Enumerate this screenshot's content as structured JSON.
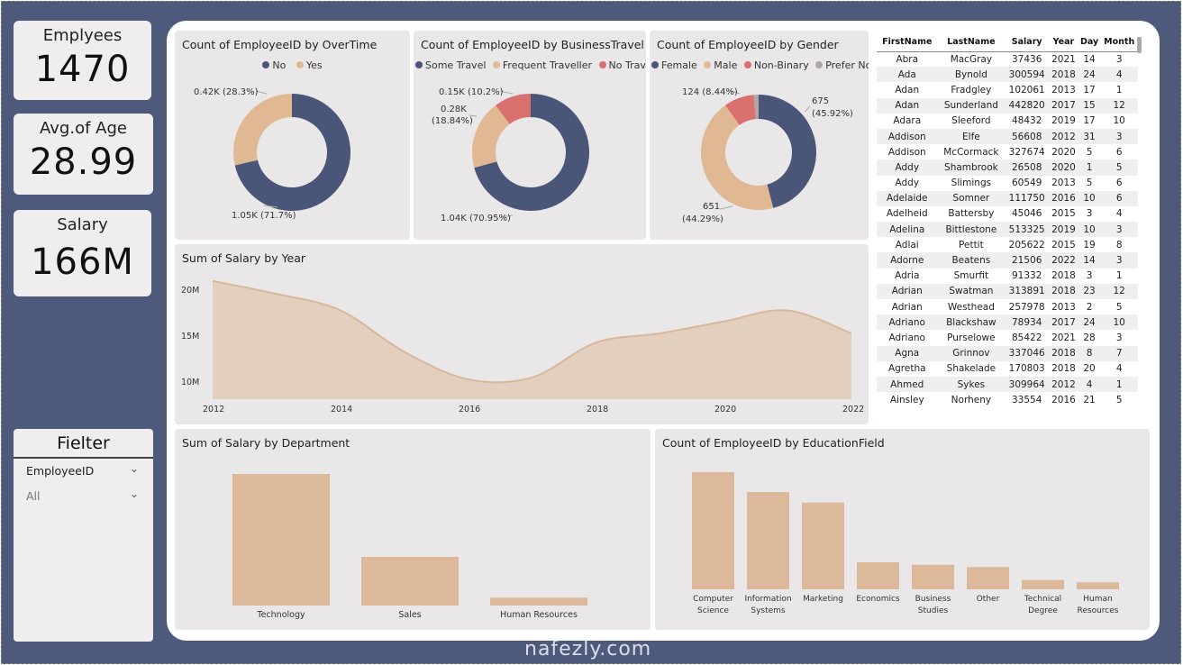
{
  "kpis": [
    {
      "title": "Emplyees",
      "value": "1470"
    },
    {
      "title": "Avg.of Age",
      "value": "28.99"
    },
    {
      "title": "Salary",
      "value": "166M"
    }
  ],
  "colors": {
    "navy": "#4a5678",
    "tan": "#e0b994",
    "red": "#d9706e",
    "grey": "#b0a8a6",
    "area": "#dfc4ab",
    "bar": "#dbb99a"
  },
  "overtime": {
    "title": "Count of EmployeeID by OverTime",
    "legend": [
      "No",
      "Yes"
    ],
    "labels": {
      "no": "1.05K (71.7%)",
      "yes": "0.42K (28.3%)"
    },
    "chart_data": {
      "type": "pie",
      "categories": [
        "No",
        "Yes"
      ],
      "values": [
        1050,
        420
      ],
      "percents": [
        71.7,
        28.3
      ]
    }
  },
  "travel": {
    "title": "Count of EmployeeID by BusinessTravel",
    "legend": [
      "Some Travel",
      "Frequent Traveller",
      "No Travel"
    ],
    "labels": {
      "some": "1.04K (70.95%)",
      "freq_top": "0.28K",
      "freq_bot": "(18.84%)",
      "no": "0.15K (10.2%)"
    },
    "chart_data": {
      "type": "pie",
      "categories": [
        "Some Travel",
        "Frequent Traveller",
        "No Travel"
      ],
      "values": [
        1040,
        280,
        150
      ],
      "percents": [
        70.95,
        18.84,
        10.2
      ]
    }
  },
  "gender": {
    "title": "Count of EmployeeID by Gender",
    "legend": [
      "Female",
      "Male",
      "Non-Binary",
      "Prefer No..."
    ],
    "labels": {
      "female_top": "675",
      "female_bot": "(45.92%)",
      "male_top": "651",
      "male_bot": "(44.29%)",
      "nb": "124 (8.44%)"
    },
    "chart_data": {
      "type": "pie",
      "categories": [
        "Female",
        "Male",
        "Non-Binary",
        "Prefer Not to Say"
      ],
      "values": [
        675,
        651,
        124,
        20
      ],
      "percents": [
        45.92,
        44.29,
        8.44,
        1.35
      ]
    }
  },
  "salary_year": {
    "title": "Sum of Salary by Year",
    "yticks": [
      "20M",
      "15M",
      "10M"
    ],
    "xticks": [
      "2012",
      "2014",
      "2016",
      "2018",
      "2020",
      "2022"
    ],
    "chart_data": {
      "type": "area",
      "x": [
        2012,
        2013,
        2014,
        2015,
        2016,
        2017,
        2018,
        2019,
        2020,
        2021,
        2022
      ],
      "values": [
        20.7,
        19.3,
        17.5,
        13.0,
        10.0,
        10.2,
        14.0,
        15.0,
        16.3,
        17.5,
        15.0
      ],
      "ylabel": "",
      "ylim": [
        10,
        20
      ]
    }
  },
  "table": {
    "headers": [
      "FirstName",
      "LastName",
      "Salary",
      "Year",
      "Day",
      "Month"
    ],
    "rows": [
      [
        "Abra",
        "MacGray",
        "37436",
        "2021",
        "14",
        "3"
      ],
      [
        "Ada",
        "Bynold",
        "300594",
        "2018",
        "24",
        "4"
      ],
      [
        "Adan",
        "Fradgley",
        "102061",
        "2013",
        "17",
        "1"
      ],
      [
        "Adan",
        "Sunderland",
        "442820",
        "2017",
        "15",
        "12"
      ],
      [
        "Adara",
        "Sleeford",
        "48432",
        "2019",
        "17",
        "10"
      ],
      [
        "Addison",
        "Elfe",
        "56608",
        "2012",
        "31",
        "3"
      ],
      [
        "Addison",
        "McCormack",
        "327674",
        "2020",
        "5",
        "6"
      ],
      [
        "Addy",
        "Shambrook",
        "26508",
        "2020",
        "1",
        "5"
      ],
      [
        "Addy",
        "Slimings",
        "60549",
        "2013",
        "5",
        "6"
      ],
      [
        "Adelaide",
        "Somner",
        "111750",
        "2016",
        "10",
        "6"
      ],
      [
        "Adelheid",
        "Battersby",
        "45046",
        "2015",
        "3",
        "4"
      ],
      [
        "Adelina",
        "Bittlestone",
        "513325",
        "2019",
        "10",
        "3"
      ],
      [
        "Adlai",
        "Pettit",
        "205622",
        "2015",
        "19",
        "8"
      ],
      [
        "Adorne",
        "Beatens",
        "21506",
        "2022",
        "14",
        "3"
      ],
      [
        "Adria",
        "Smurfit",
        "91332",
        "2018",
        "3",
        "1"
      ],
      [
        "Adrian",
        "Swatman",
        "313891",
        "2018",
        "23",
        "12"
      ],
      [
        "Adrian",
        "Westhead",
        "257978",
        "2013",
        "2",
        "5"
      ],
      [
        "Adriano",
        "Blackshaw",
        "78934",
        "2017",
        "24",
        "10"
      ],
      [
        "Adriano",
        "Purselowe",
        "85422",
        "2021",
        "28",
        "3"
      ],
      [
        "Agna",
        "Grinnov",
        "337046",
        "2018",
        "8",
        "7"
      ],
      [
        "Agretha",
        "Shakelade",
        "170803",
        "2018",
        "20",
        "4"
      ],
      [
        "Ahmed",
        "Sykes",
        "309964",
        "2012",
        "4",
        "1"
      ],
      [
        "Ainsley",
        "Norheny",
        "33554",
        "2016",
        "21",
        "5"
      ]
    ]
  },
  "filter": {
    "title": "Fielter",
    "field": "EmployeeID",
    "value": "All"
  },
  "dept": {
    "title": "Sum of Salary by Department",
    "categories": [
      "Technology",
      "Sales",
      "Human Resources"
    ],
    "chart_data": {
      "type": "bar",
      "categories": [
        "Technology",
        "Sales",
        "Human Resources"
      ],
      "values": [
        100,
        37,
        6
      ]
    }
  },
  "edu": {
    "title": "Count of EmployeeID by EducationField",
    "categories": [
      [
        "Computer",
        "Science"
      ],
      [
        "Information",
        "Systems"
      ],
      [
        "Marketing"
      ],
      [
        "Economics"
      ],
      [
        "Business",
        "Studies"
      ],
      [
        "Other"
      ],
      [
        "Technical",
        "Degree"
      ],
      [
        "Human",
        "Resources"
      ]
    ],
    "chart_data": {
      "type": "bar",
      "categories": [
        "Computer Science",
        "Information Systems",
        "Marketing",
        "Economics",
        "Business Studies",
        "Other",
        "Technical Degree",
        "Human Resources"
      ],
      "values": [
        100,
        83,
        74,
        23,
        21,
        19,
        8,
        6
      ]
    }
  },
  "watermark": "nafezly.com"
}
